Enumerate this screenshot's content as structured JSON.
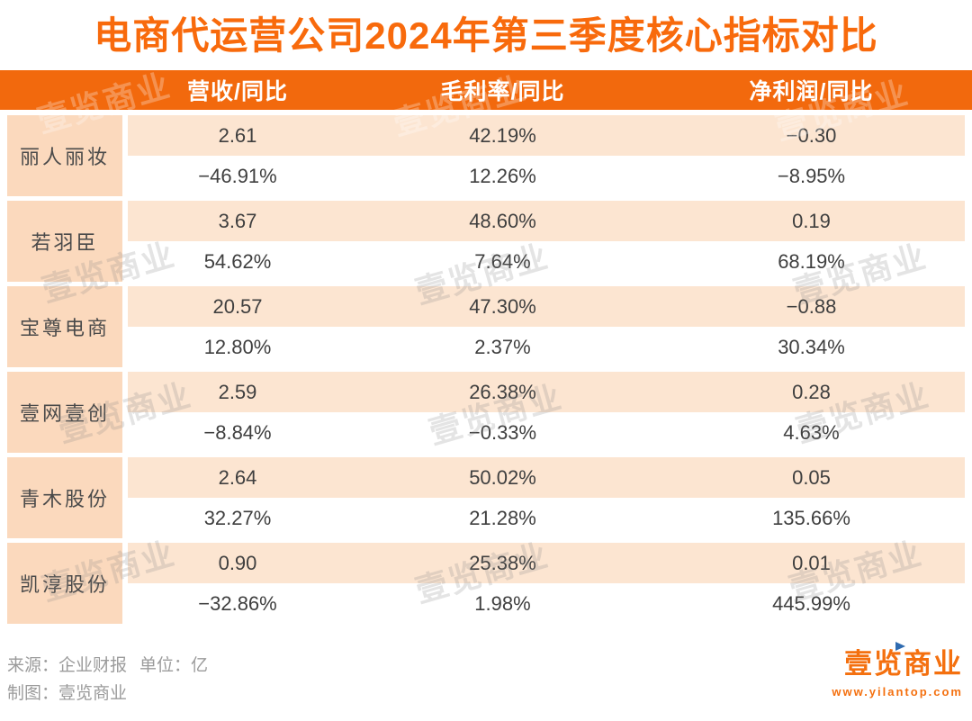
{
  "title": "电商代运营公司2024年第三季度核心指标对比",
  "chart_data": {
    "type": "table",
    "title": "电商代运营公司2024年第三季度核心指标对比",
    "columns": [
      "营收/同比",
      "毛利率/同比",
      "净利润/同比"
    ],
    "row_structure": "each company has a value row (营收 亿, 毛利率, 净利润 亿) and a YoY row (同比)",
    "rows": [
      {
        "name": "丽人丽妆",
        "values": [
          "2.61",
          "42.19%",
          "−0.30"
        ],
        "yoy": [
          "−46.91%",
          "12.26%",
          "−8.95%"
        ]
      },
      {
        "name": "若羽臣",
        "values": [
          "3.67",
          "48.60%",
          "0.19"
        ],
        "yoy": [
          "54.62%",
          "7.64%",
          "68.19%"
        ]
      },
      {
        "name": "宝尊电商",
        "values": [
          "20.57",
          "47.30%",
          "−0.88"
        ],
        "yoy": [
          "12.80%",
          "2.37%",
          "30.34%"
        ]
      },
      {
        "name": "壹网壹创",
        "values": [
          "2.59",
          "26.38%",
          "0.28"
        ],
        "yoy": [
          "−8.84%",
          "−0.33%",
          "4.63%"
        ]
      },
      {
        "name": "青木股份",
        "values": [
          "2.64",
          "50.02%",
          "0.05"
        ],
        "yoy": [
          "32.27%",
          "21.28%",
          "135.66%"
        ]
      },
      {
        "name": "凯淳股份",
        "values": [
          "0.90",
          "25.38%",
          "0.01"
        ],
        "yoy": [
          "−32.86%",
          "1.98%",
          "445.99%"
        ]
      }
    ]
  },
  "footer": {
    "source": "来源：企业财报",
    "unit": "单位：亿",
    "credit": "制图：壹览商业"
  },
  "logo": {
    "brand": "壹览商业",
    "url": "www.yilantop.com"
  },
  "watermark_text": "壹览商业",
  "colors": {
    "title_orange": "#f86a0c",
    "header_band_orange": "#f2690d",
    "company_cell_peach": "#fbd9bd",
    "value_row_peach": "#fce5d1",
    "cell_text": "#3f3f3f",
    "footer_gray": "#9b9b9b",
    "logo_orange": "#f4700f",
    "logo_flag_blue": "#2f6bb0"
  }
}
